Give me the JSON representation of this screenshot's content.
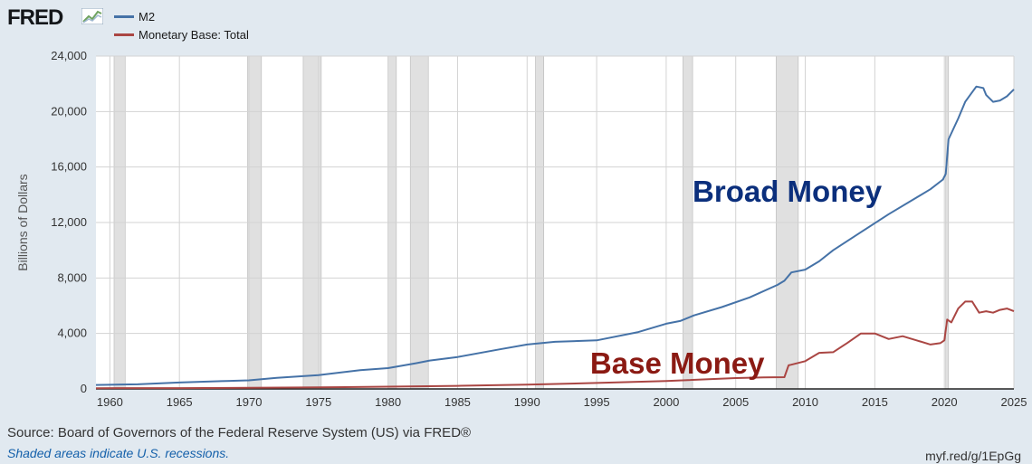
{
  "brand": {
    "name": "FRED",
    "icon": "fred-graph-icon"
  },
  "colors": {
    "background": "#e1e9f0",
    "plot_background": "#ffffff",
    "recession_shade": "#e0e0e0",
    "m2": "#4572a7",
    "base": "#aa4643",
    "annotation_broad": "#0b2f7c",
    "annotation_base": "#8b1a13"
  },
  "footer": {
    "source": "Source: Board of Governors of the Federal Reserve System (US) via FRED®",
    "note": "Shaded areas indicate U.S. recessions.",
    "link": "myf.red/g/1EpGg"
  },
  "chart_data": {
    "type": "line",
    "title": "",
    "xlabel": "",
    "ylabel": "Billions of Dollars",
    "xlim": [
      1959,
      2025
    ],
    "ylim": [
      0,
      24000
    ],
    "grid": true,
    "legend": "top-left",
    "x_ticks": [
      "1960",
      "1965",
      "1970",
      "1975",
      "1980",
      "1985",
      "1990",
      "1995",
      "2000",
      "2005",
      "2010",
      "2015",
      "2020",
      "2025"
    ],
    "y_ticks": [
      "0",
      "4,000",
      "8,000",
      "12,000",
      "16,000",
      "20,000",
      "24,000"
    ],
    "recessions": [
      [
        1960.3,
        1961.1
      ],
      [
        1969.9,
        1970.9
      ],
      [
        1973.9,
        1975.2
      ],
      [
        1980.0,
        1980.6
      ],
      [
        1981.6,
        1982.9
      ],
      [
        1990.6,
        1991.2
      ],
      [
        2001.2,
        2001.9
      ],
      [
        2007.9,
        2009.5
      ],
      [
        2020.1,
        2020.3
      ]
    ],
    "annotations": [
      {
        "text": "Broad Money",
        "x": 2008.7,
        "y": 13500,
        "series": "M2"
      },
      {
        "text": "Base Money",
        "x": 2000.8,
        "y": 1100,
        "series": "Monetary Base: Total"
      }
    ],
    "series": [
      {
        "name": "M2",
        "x": [
          1959,
          1960,
          1962,
          1965,
          1968,
          1970,
          1972,
          1975,
          1978,
          1980,
          1982,
          1983,
          1985,
          1988,
          1990,
          1992,
          1995,
          1998,
          2000,
          2001,
          2002,
          2004,
          2006,
          2008,
          2008.5,
          2009,
          2010,
          2011,
          2012,
          2014,
          2016,
          2018,
          2019,
          2019.9,
          2020.1,
          2020.3,
          2021,
          2021.5,
          2022,
          2022.3,
          2022.8,
          2023,
          2023.5,
          2024,
          2024.5,
          2025
        ],
        "values": [
          290,
          300,
          330,
          460,
          560,
          620,
          800,
          1000,
          1350,
          1500,
          1850,
          2050,
          2300,
          2850,
          3200,
          3400,
          3500,
          4100,
          4700,
          4900,
          5300,
          5900,
          6600,
          7500,
          7800,
          8400,
          8600,
          9200,
          10000,
          11300,
          12600,
          13800,
          14400,
          15100,
          15500,
          18000,
          19500,
          20700,
          21400,
          21800,
          21700,
          21200,
          20700,
          20800,
          21100,
          21600
        ]
      },
      {
        "name": "Monetary Base: Total",
        "x": [
          1959,
          1965,
          1970,
          1975,
          1980,
          1985,
          1990,
          1995,
          2000,
          2005,
          2007,
          2008.5,
          2008.8,
          2009,
          2010,
          2011,
          2012,
          2013,
          2014,
          2015,
          2016,
          2017,
          2018,
          2019,
          2019.7,
          2020,
          2020.2,
          2020.5,
          2021,
          2021.5,
          2022,
          2022.5,
          2023,
          2023.5,
          2024,
          2024.5,
          2025
        ],
        "values": [
          50,
          60,
          80,
          110,
          160,
          220,
          310,
          430,
          570,
          780,
          830,
          850,
          1700,
          1750,
          2000,
          2600,
          2650,
          3300,
          4000,
          4000,
          3600,
          3800,
          3500,
          3200,
          3300,
          3500,
          5000,
          4800,
          5800,
          6300,
          6300,
          5500,
          5600,
          5500,
          5700,
          5800,
          5600
        ]
      }
    ]
  }
}
